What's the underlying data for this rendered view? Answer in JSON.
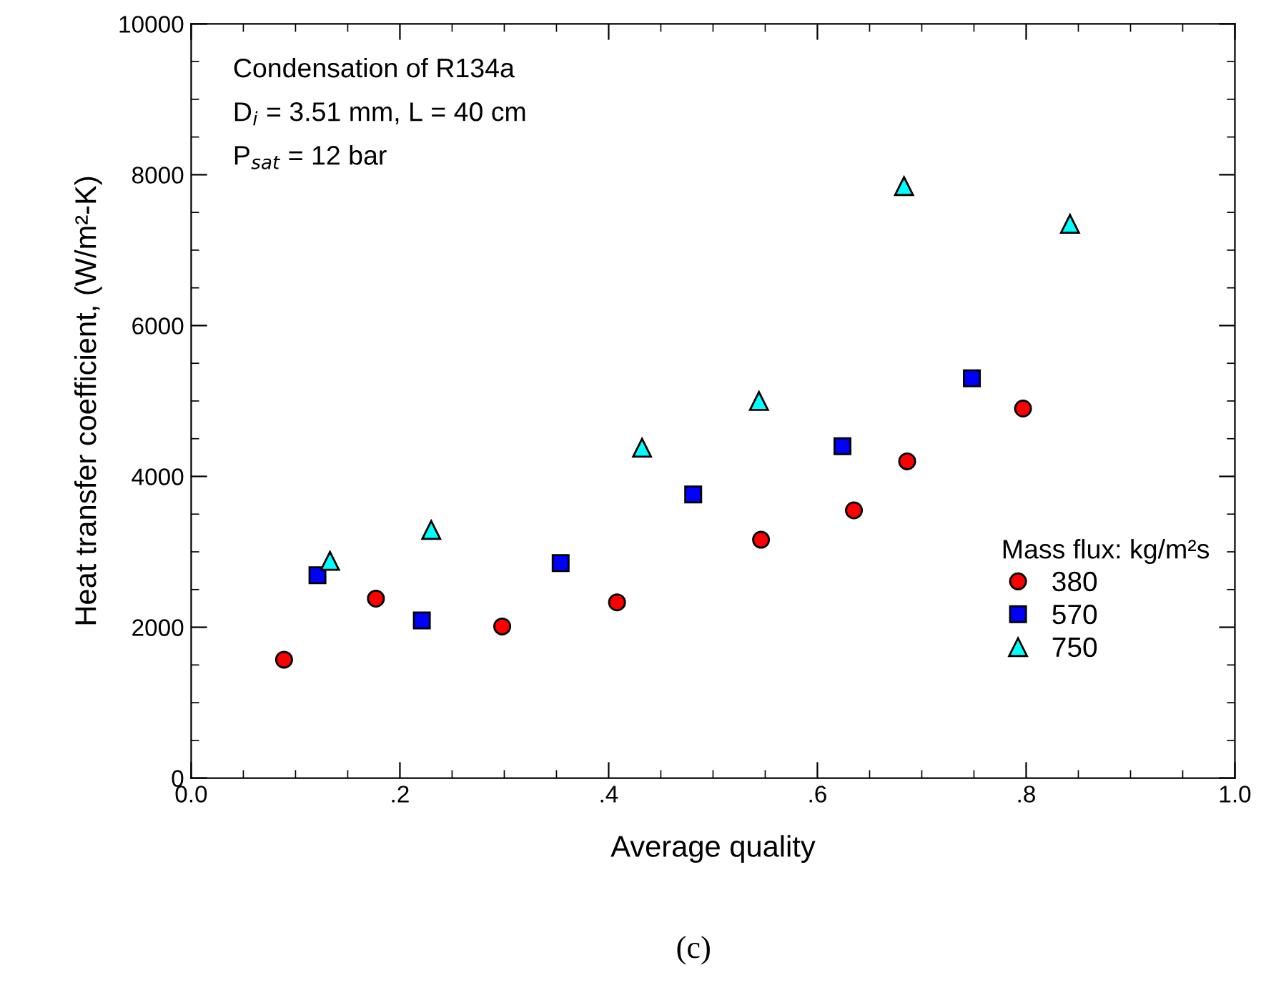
{
  "chart_data": {
    "type": "scatter",
    "xlabel": "Average quality",
    "ylabel": "Heat transfer coefficient, (W/m²-K)",
    "legend_title": "Mass flux: kg/m²s",
    "annotations": [
      "Condensation of R134a",
      "D$_{i}$ = 3.51 mm, L = 40 cm",
      "P$_{sat}$ = 12 bar",
      "(c)"
    ],
    "xlim": [
      0,
      1
    ],
    "ylim": [
      0,
      10000
    ],
    "xticks": [
      {
        "value": 0,
        "label": "0.0"
      },
      {
        "value": 0.2,
        "label": ".2"
      },
      {
        "value": 0.4,
        "label": ".4"
      },
      {
        "value": 0.6,
        "label": ".6"
      },
      {
        "value": 0.8,
        "label": ".8"
      },
      {
        "value": 1,
        "label": "1.0"
      }
    ],
    "yticks": [
      0,
      2000,
      4000,
      6000,
      8000,
      10000
    ],
    "grid": false,
    "legend": "bottom right",
    "series": [
      {
        "name": "380",
        "color": "#ff0000",
        "marker": "circle",
        "x": [
          0.089,
          0.177,
          0.298,
          0.408,
          0.546,
          0.635,
          0.686,
          0.797
        ],
        "values": [
          1570,
          2380,
          2010,
          2330,
          3160,
          3550,
          4200,
          4900
        ]
      },
      {
        "name": "570",
        "color": "#0000ff",
        "marker": "square",
        "x": [
          0.121,
          0.221,
          0.354,
          0.481,
          0.624,
          0.748
        ],
        "values": [
          2690,
          2090,
          2850,
          3760,
          4400,
          5300
        ]
      },
      {
        "name": "750",
        "color": "#00ffff",
        "marker": "triangle",
        "x": [
          0.133,
          0.23,
          0.432,
          0.544,
          0.683,
          0.842
        ],
        "values": [
          2880,
          3290,
          4380,
          5000,
          7850,
          7350
        ]
      }
    ]
  }
}
